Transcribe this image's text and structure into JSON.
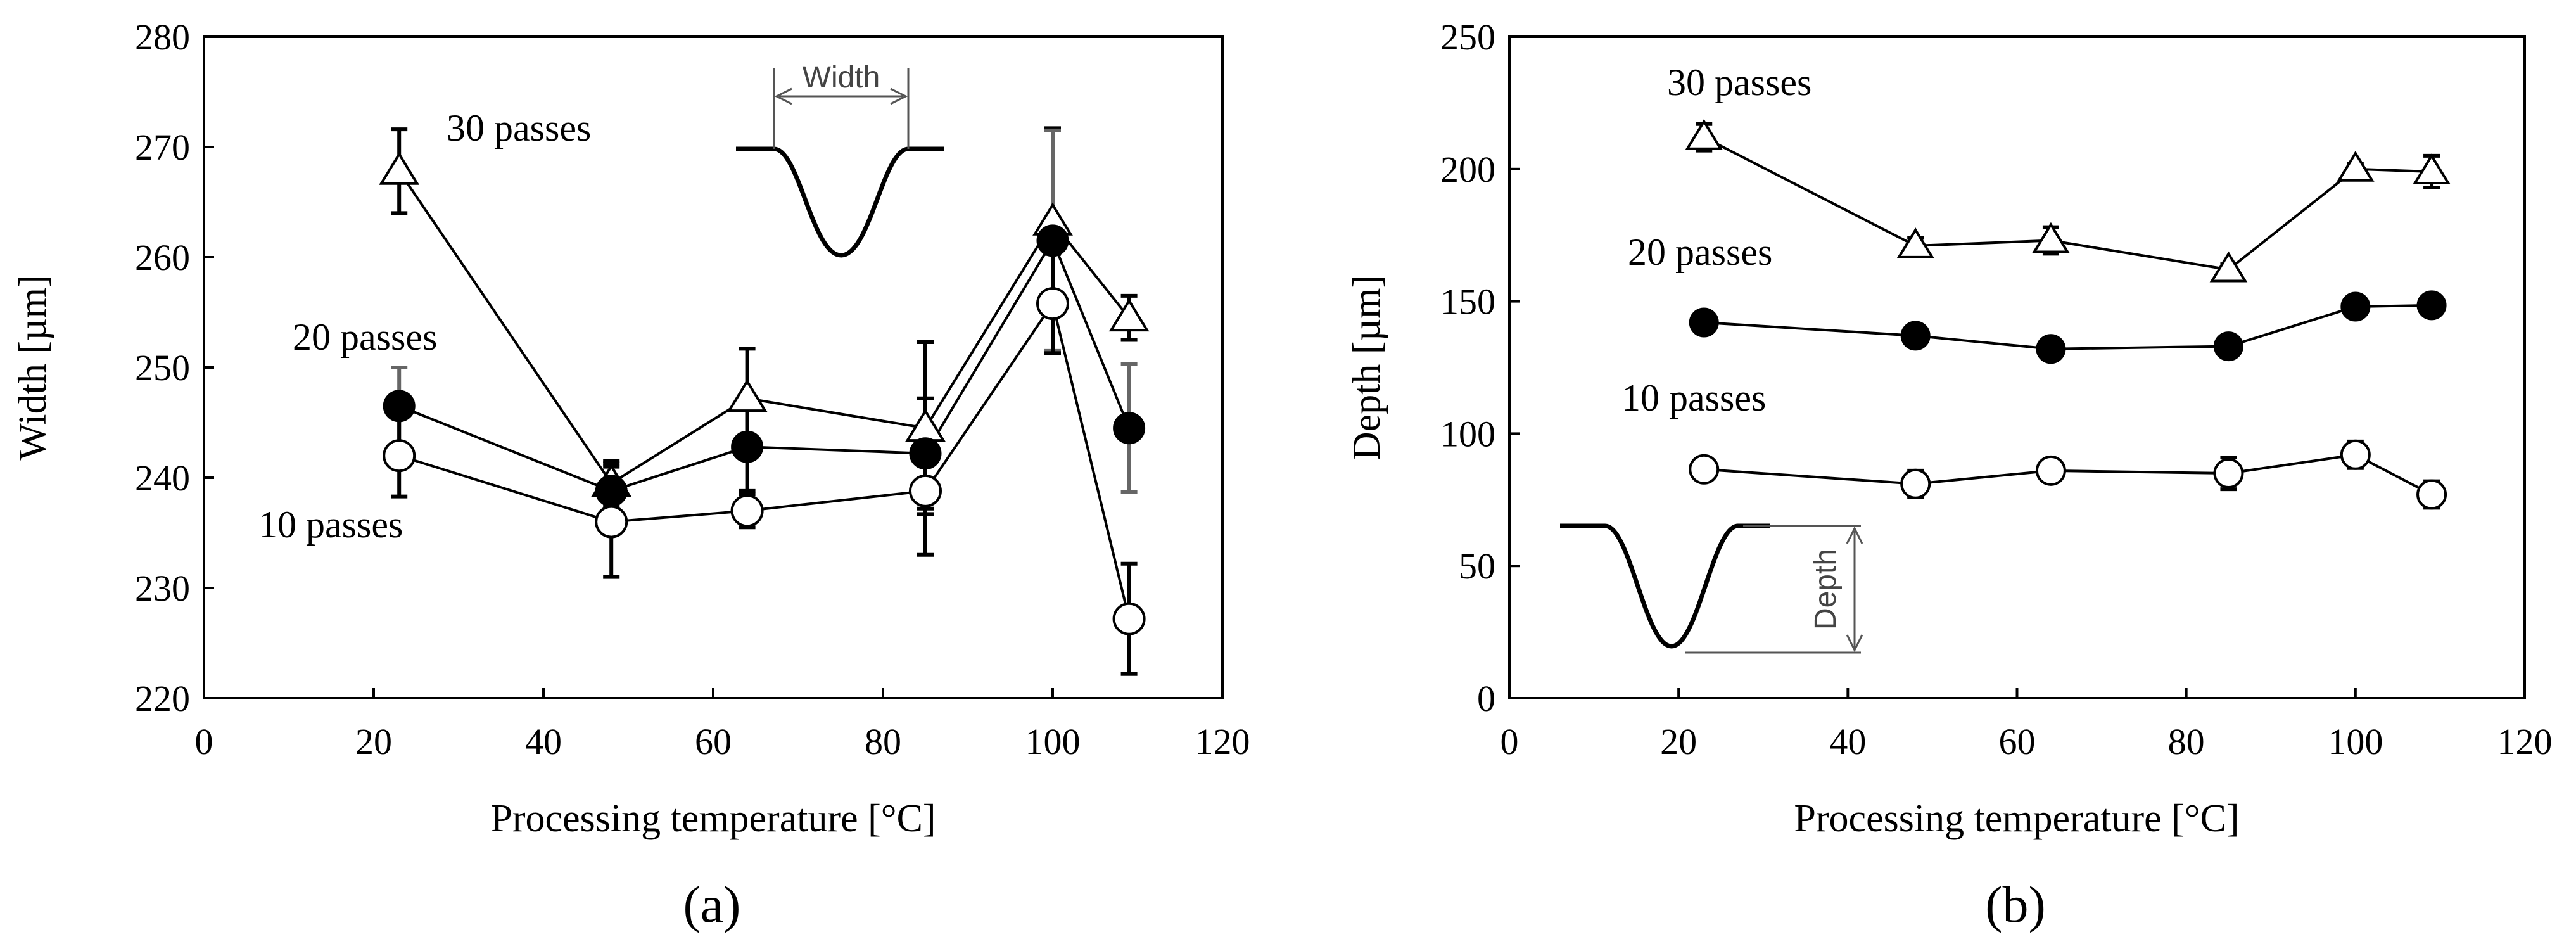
{
  "colors": {
    "foreground": "#000000",
    "error_bar_gray": "#666666",
    "inset_text": "#444444",
    "background": "#ffffff"
  },
  "chart_data": [
    {
      "type": "line",
      "panel_label": "(a)",
      "title": "",
      "xlabel": "Processing temperature [°C]",
      "ylabel": "Width [µm]",
      "xlim": [
        0,
        120
      ],
      "ylim": [
        220,
        280
      ],
      "x_ticks": [
        0,
        20,
        40,
        60,
        80,
        100,
        120
      ],
      "y_ticks": [
        220,
        230,
        240,
        250,
        260,
        270,
        280
      ],
      "grid": false,
      "inset_label": "Width",
      "x": [
        23,
        48,
        64,
        85,
        100,
        109
      ],
      "series": [
        {
          "name": "30 passes",
          "marker": "open-triangle",
          "values": [
            267.8,
            239.5,
            247.2,
            244.5,
            263.2,
            254.5
          ],
          "errors": [
            3.8,
            2.0,
            4.5,
            7.8,
            8.5,
            2.0
          ]
        },
        {
          "name": "20 passes",
          "marker": "filled-circle",
          "values": [
            246.5,
            238.8,
            242.8,
            242.2,
            261.5,
            244.5
          ],
          "errors": [
            3.5,
            2.5,
            4.0,
            5.0,
            10.0,
            5.8
          ]
        },
        {
          "name": "10 passes",
          "marker": "open-circle",
          "values": [
            242.0,
            236.0,
            237.0,
            238.8,
            255.8,
            227.2
          ],
          "errors": [
            3.7,
            5.0,
            1.5,
            5.8,
            4.5,
            5.0
          ]
        }
      ]
    },
    {
      "type": "line",
      "panel_label": "(b)",
      "title": "",
      "xlabel": "Processing temperature [°C]",
      "ylabel": "Depth [µm]",
      "xlim": [
        0,
        120
      ],
      "ylim": [
        0,
        250
      ],
      "x_ticks": [
        0,
        20,
        40,
        60,
        80,
        100,
        120
      ],
      "y_ticks": [
        0,
        50,
        100,
        150,
        200,
        250
      ],
      "grid": false,
      "inset_label": "Depth",
      "x": [
        23,
        48,
        64,
        85,
        100,
        109
      ],
      "series": [
        {
          "name": "30 passes",
          "marker": "open-triangle",
          "values": [
            212,
            171,
            173,
            162,
            200,
            199
          ],
          "errors": [
            5,
            3,
            5,
            2,
            2,
            6
          ]
        },
        {
          "name": "20 passes",
          "marker": "filled-circle",
          "values": [
            142,
            137,
            132,
            133,
            148,
            148.5
          ],
          "errors": [
            2,
            2,
            2,
            2,
            2,
            2
          ]
        },
        {
          "name": "10 passes",
          "marker": "open-circle",
          "values": [
            86.5,
            81,
            86,
            85,
            92,
            77
          ],
          "errors": [
            2,
            5,
            2,
            6,
            5,
            5
          ]
        }
      ]
    }
  ]
}
